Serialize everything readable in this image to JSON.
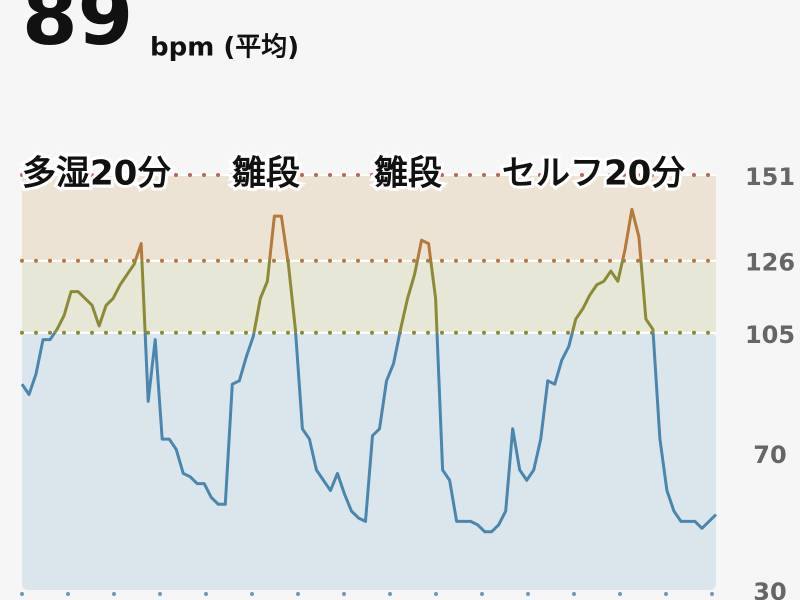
{
  "header": {
    "average": 89,
    "unit_label": "bpm (平均)"
  },
  "chart_data": {
    "type": "line",
    "annotations": [
      "多湿20分",
      "雛段",
      "雛段",
      "セルフ20分"
    ],
    "x": [
      0,
      1,
      2,
      3,
      4,
      5,
      6,
      7,
      8,
      9,
      10,
      11,
      12,
      13,
      14,
      15,
      16,
      17,
      18,
      19,
      20,
      21,
      22,
      23,
      24,
      25,
      26,
      27,
      28,
      29,
      30,
      31,
      32,
      33,
      34,
      35,
      36,
      37,
      38,
      39,
      40,
      41,
      42,
      43,
      44,
      45,
      46,
      47,
      48,
      49,
      50,
      51,
      52,
      53,
      54,
      55,
      56,
      57,
      58,
      59,
      60,
      61,
      62,
      63,
      64,
      65,
      66,
      67,
      68,
      69,
      70,
      71,
      72,
      73,
      74,
      75,
      76,
      77,
      78,
      79,
      80,
      81,
      82,
      83,
      84,
      85,
      86,
      87,
      88,
      89,
      90,
      91,
      92,
      93,
      94,
      95,
      96,
      97,
      98,
      99
    ],
    "values": [
      90,
      87,
      93,
      103,
      103,
      106,
      110,
      117,
      117,
      115,
      113,
      107,
      113,
      115,
      119,
      122,
      125,
      131,
      85,
      103,
      74,
      74,
      71,
      64,
      63,
      61,
      61,
      57,
      55,
      55,
      90,
      91,
      98,
      104,
      115,
      120,
      139,
      139,
      125,
      106,
      77,
      74,
      65,
      62,
      59,
      64,
      58,
      53,
      51,
      50,
      75,
      77,
      91,
      96,
      106,
      115,
      122,
      132,
      131,
      115,
      65,
      62,
      50,
      50,
      50,
      49,
      47,
      47,
      49,
      53,
      77,
      65,
      62,
      65,
      74,
      91,
      90,
      97,
      101,
      109,
      112,
      116,
      119,
      120,
      123,
      120,
      129,
      141,
      133,
      109,
      106,
      74,
      59,
      53,
      50,
      50,
      50,
      48,
      50,
      52
    ],
    "xlim": [
      0,
      99
    ],
    "ylim": [
      30,
      151
    ],
    "yticks": [
      151,
      126,
      105,
      70,
      30
    ],
    "zones": [
      {
        "min": 30,
        "max": 105,
        "fill": "#dbe6ec",
        "line": "#4a86ad"
      },
      {
        "min": 105,
        "max": 126,
        "fill": "#e6e7d6",
        "line": "#8c8a35"
      },
      {
        "min": 126,
        "max": 151,
        "fill": "#ede3d5",
        "line": "#b5793a"
      }
    ]
  }
}
